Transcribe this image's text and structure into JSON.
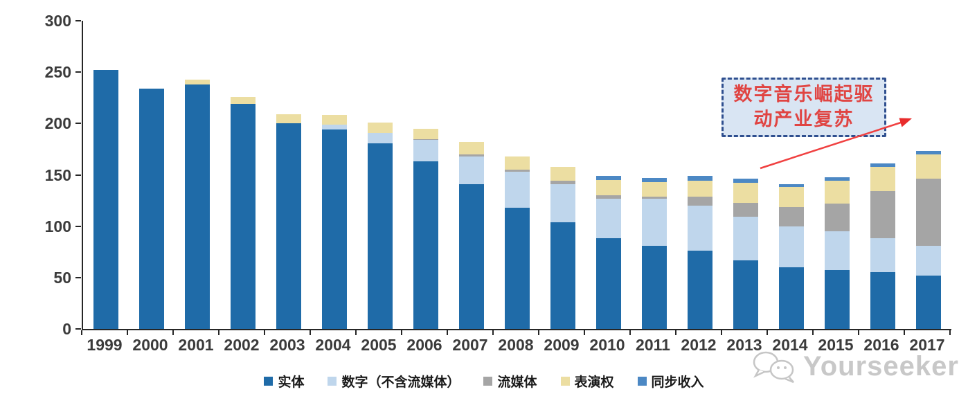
{
  "chart_data": {
    "type": "bar",
    "stacked": true,
    "title": "",
    "xlabel": "",
    "ylabel": "",
    "ylim": [
      0,
      300
    ],
    "yticks": [
      0,
      50,
      100,
      150,
      200,
      250,
      300
    ],
    "grid": false,
    "legend_position": "bottom",
    "categories": [
      "1999",
      "2000",
      "2001",
      "2002",
      "2003",
      "2004",
      "2005",
      "2006",
      "2007",
      "2008",
      "2009",
      "2010",
      "2011",
      "2012",
      "2013",
      "2014",
      "2015",
      "2016",
      "2017"
    ],
    "series": [
      {
        "name": "实体",
        "color": "#1f6ba8",
        "values": [
          252,
          234,
          238,
          219,
          200,
          194,
          181,
          163,
          141,
          118,
          104,
          88,
          81,
          76,
          67,
          60,
          57,
          55,
          52
        ]
      },
      {
        "name": "数字（不含流媒体）",
        "color": "#bfd6ec",
        "values": [
          0,
          0,
          0,
          0,
          0,
          5,
          10,
          21,
          27,
          35,
          37,
          39,
          46,
          44,
          42,
          40,
          38,
          33,
          29
        ]
      },
      {
        "name": "流媒体",
        "color": "#a5a5a5",
        "values": [
          0,
          0,
          0,
          0,
          0,
          0,
          0,
          1,
          2,
          2,
          3,
          3,
          2,
          9,
          14,
          19,
          27,
          46,
          65
        ]
      },
      {
        "name": "表演权",
        "color": "#ecdea2",
        "values": [
          0,
          0,
          5,
          7,
          9,
          9,
          10,
          10,
          12,
          13,
          14,
          15,
          14,
          15,
          19,
          19,
          22,
          24,
          24
        ]
      },
      {
        "name": "同步收入",
        "color": "#4c88c4",
        "values": [
          0,
          0,
          0,
          0,
          0,
          0,
          0,
          0,
          0,
          0,
          0,
          4,
          4,
          5,
          4,
          3,
          4,
          3,
          3
        ]
      }
    ]
  },
  "annotation": {
    "line1": "数字音乐崛起驱",
    "line2": "动产业复苏",
    "box_fill": "#d9e5f3",
    "box_border": "#2f4f8f",
    "text_color": "#e04442",
    "arrow_color": "#f04040"
  },
  "watermark": {
    "text": "Yourseeker",
    "icon": "chat-bubbles-face-icon",
    "color": "#c3c3c3"
  }
}
